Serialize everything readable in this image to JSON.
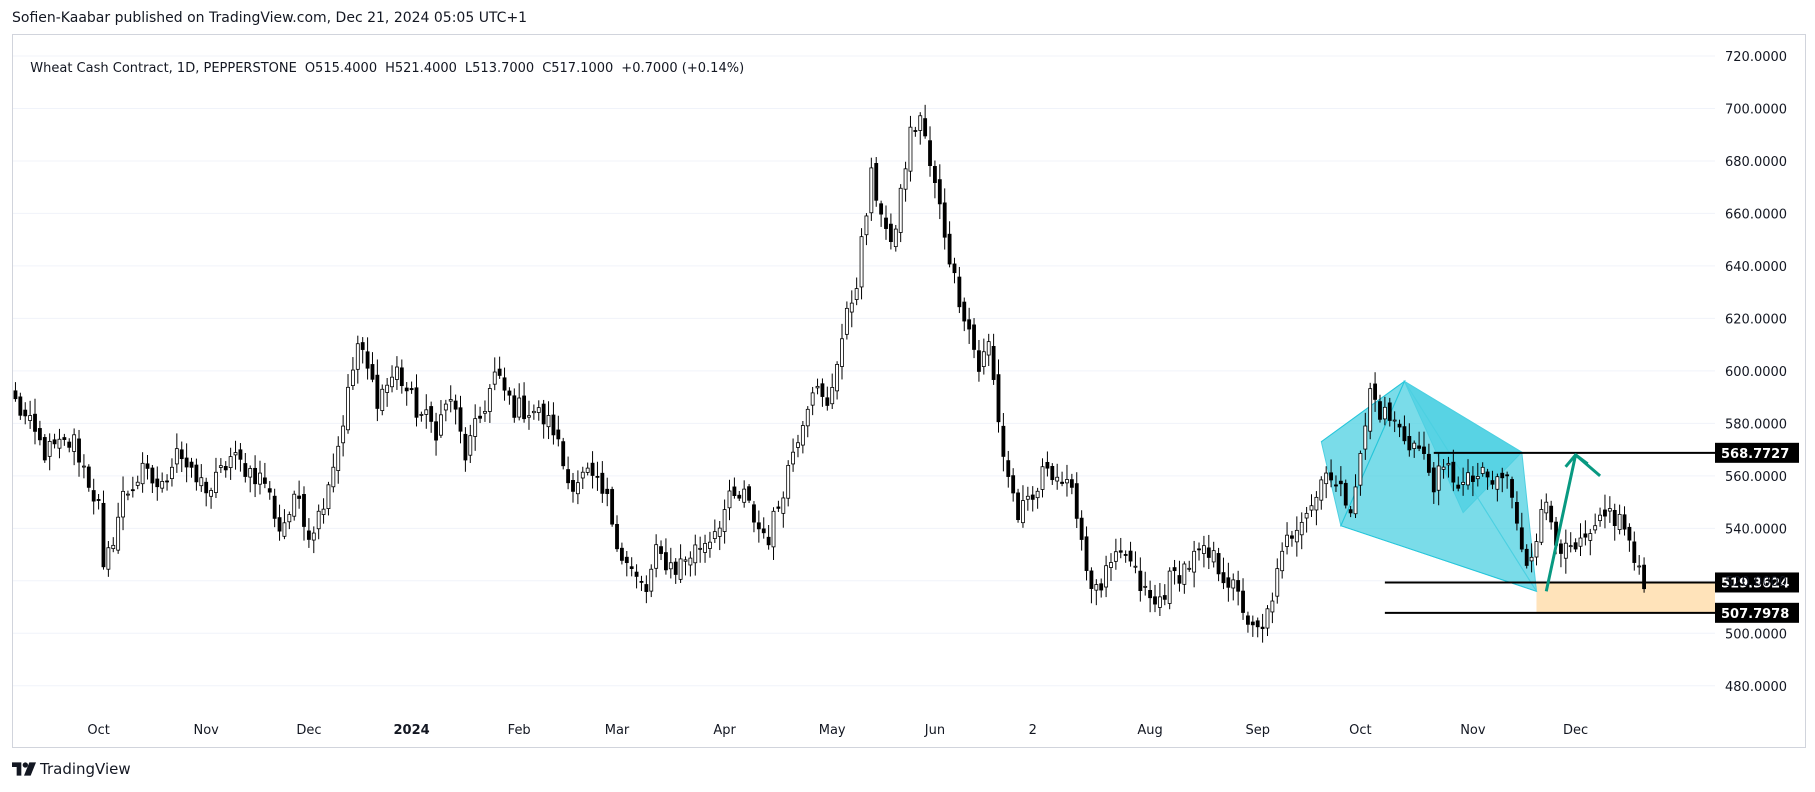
{
  "header": {
    "published_by": "Sofien-Kaabar published on TradingView.com, Dec 21, 2024 05:05 UTC+1"
  },
  "legend": {
    "symbol": "Wheat Cash Contract, 1D, PEPPERSTONE",
    "open": "O515.4000",
    "high": "H521.4000",
    "low": "L513.7000",
    "close": "C517.1000",
    "change": "+0.7000 (+0.14%)"
  },
  "footer": {
    "brand": "TradingView",
    "logo_icon": "tradingview-logo-icon"
  },
  "colors": {
    "up_body": "#ffffff",
    "down_body": "#000000",
    "wick": "#000000",
    "pattern_fill": "#4dd0e1",
    "arrow": "#089981",
    "zone_fill": "#ffe0b2",
    "grid": "#f0f3fa",
    "border": "#d1d4dc"
  },
  "chart_data": {
    "type": "candlestick",
    "title": "Wheat Cash Contract, 1D, PEPPERSTONE",
    "ylim": [
      470,
      728
    ],
    "y_ticks": [
      "480.0000",
      "500.0000",
      "520.0000",
      "540.0000",
      "560.0000",
      "580.0000",
      "600.0000",
      "620.0000",
      "640.0000",
      "660.0000",
      "680.0000",
      "700.0000",
      "720.0000"
    ],
    "y_tick_values": [
      480,
      500,
      520,
      540,
      560,
      580,
      600,
      620,
      640,
      660,
      680,
      700,
      720
    ],
    "x_ticks": [
      "Oct",
      "Nov",
      "Dec",
      "2024",
      "Feb",
      "Mar",
      "Apr",
      "May",
      "Jun",
      "2",
      "Aug",
      "Sep",
      "Oct",
      "Nov",
      "Dec"
    ],
    "x_tick_bar_index": [
      17,
      39,
      60,
      81,
      103,
      123,
      145,
      167,
      188,
      208,
      232,
      254,
      275,
      298,
      319
    ],
    "x_tick_bold": [
      "2024"
    ],
    "bar_count": 334,
    "anchors": [
      [
        0,
        588
      ],
      [
        6,
        569
      ],
      [
        12,
        573
      ],
      [
        17,
        548
      ],
      [
        18,
        522
      ],
      [
        22,
        552
      ],
      [
        26,
        561
      ],
      [
        30,
        555
      ],
      [
        33,
        572
      ],
      [
        36,
        559
      ],
      [
        40,
        555
      ],
      [
        44,
        567
      ],
      [
        48,
        562
      ],
      [
        51,
        558
      ],
      [
        54,
        540
      ],
      [
        58,
        552
      ],
      [
        60,
        538
      ],
      [
        62,
        545
      ],
      [
        66,
        572
      ],
      [
        70,
        610
      ],
      [
        74,
        590
      ],
      [
        78,
        600
      ],
      [
        82,
        585
      ],
      [
        86,
        578
      ],
      [
        89,
        590
      ],
      [
        92,
        568
      ],
      [
        95,
        582
      ],
      [
        98,
        598
      ],
      [
        102,
        586
      ],
      [
        106,
        585
      ],
      [
        110,
        578
      ],
      [
        113,
        558
      ],
      [
        117,
        560
      ],
      [
        121,
        550
      ],
      [
        124,
        530
      ],
      [
        127,
        520
      ],
      [
        129,
        516
      ],
      [
        131,
        530
      ],
      [
        135,
        525
      ],
      [
        139,
        532
      ],
      [
        142,
        537
      ],
      [
        146,
        550
      ],
      [
        149,
        552
      ],
      [
        152,
        540
      ],
      [
        154,
        537
      ],
      [
        156,
        549
      ],
      [
        159,
        570
      ],
      [
        163,
        595
      ],
      [
        166,
        585
      ],
      [
        168,
        605
      ],
      [
        172,
        635
      ],
      [
        175,
        673
      ],
      [
        177,
        662
      ],
      [
        179,
        645
      ],
      [
        183,
        690
      ],
      [
        185,
        697
      ],
      [
        187,
        678
      ],
      [
        189,
        662
      ],
      [
        192,
        635
      ],
      [
        195,
        616
      ],
      [
        197,
        601
      ],
      [
        199,
        610
      ],
      [
        202,
        568
      ],
      [
        205,
        545
      ],
      [
        208,
        550
      ],
      [
        211,
        565
      ],
      [
        214,
        558
      ],
      [
        217,
        548
      ],
      [
        219,
        525
      ],
      [
        221,
        515
      ],
      [
        224,
        525
      ],
      [
        227,
        530
      ],
      [
        230,
        518
      ],
      [
        233,
        510
      ],
      [
        236,
        520
      ],
      [
        239,
        525
      ],
      [
        242,
        530
      ],
      [
        245,
        528
      ],
      [
        248,
        520
      ],
      [
        251,
        510
      ],
      [
        253,
        500
      ],
      [
        255,
        500
      ],
      [
        257,
        515
      ],
      [
        260,
        535
      ],
      [
        263,
        546
      ],
      [
        266,
        552
      ],
      [
        268,
        565
      ],
      [
        270,
        555
      ],
      [
        273,
        550
      ],
      [
        275,
        566
      ],
      [
        277,
        592
      ],
      [
        279,
        585
      ],
      [
        282,
        580
      ],
      [
        284,
        575
      ],
      [
        287,
        570
      ],
      [
        290,
        558
      ],
      [
        293,
        562
      ],
      [
        296,
        556
      ],
      [
        299,
        560
      ],
      [
        302,
        557
      ],
      [
        305,
        560
      ],
      [
        307,
        540
      ],
      [
        309,
        528
      ],
      [
        311,
        538
      ],
      [
        313,
        550
      ],
      [
        315,
        538
      ],
      [
        317,
        530
      ],
      [
        320,
        532
      ],
      [
        323,
        538
      ],
      [
        326,
        546
      ],
      [
        329,
        541
      ],
      [
        331,
        527
      ],
      [
        333,
        517
      ]
    ],
    "annotations": {
      "horizontal_levels": [
        {
          "value": 568.7727,
          "label": "568.7727"
        },
        {
          "value": 519.3624,
          "label": "519.3624"
        },
        {
          "value": 507.7978,
          "label": "507.7978"
        }
      ],
      "pattern_points": [
        {
          "bar": 267,
          "price": 573
        },
        {
          "bar": 284,
          "price": 596
        },
        {
          "bar": 308,
          "price": 569
        },
        {
          "bar": 311,
          "price": 516
        },
        {
          "bar": 271,
          "price": 541
        },
        {
          "bar": 296,
          "price": 546
        }
      ],
      "arrow_points": [
        {
          "bar": 313,
          "price": 516
        },
        {
          "bar": 319,
          "price": 568
        },
        {
          "bar": 324,
          "price": 560
        }
      ],
      "zone": {
        "top": 519.3624,
        "bottom": 507.7978,
        "start_bar": 311
      }
    }
  }
}
